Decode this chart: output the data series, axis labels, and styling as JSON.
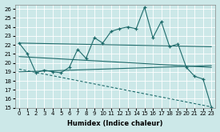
{
  "xlabel": "Humidex (Indice chaleur)",
  "background_color": "#cce8e8",
  "grid_color": "#ffffff",
  "line_color": "#1e6b6b",
  "xlim": [
    -0.5,
    23.5
  ],
  "ylim": [
    15,
    26.5
  ],
  "yticks": [
    15,
    16,
    17,
    18,
    19,
    20,
    21,
    22,
    23,
    24,
    25,
    26
  ],
  "xticks": [
    0,
    1,
    2,
    3,
    4,
    5,
    6,
    7,
    8,
    9,
    10,
    11,
    12,
    13,
    14,
    15,
    16,
    17,
    18,
    19,
    20,
    21,
    22,
    23
  ],
  "main_x": [
    0,
    1,
    2,
    3,
    4,
    5,
    6,
    7,
    8,
    9,
    10,
    11,
    12,
    13,
    14,
    15,
    16,
    17,
    18,
    19,
    20,
    21,
    22,
    23
  ],
  "main_y": [
    22.2,
    21.0,
    18.9,
    19.2,
    19.0,
    18.9,
    19.5,
    21.5,
    20.5,
    22.8,
    22.2,
    23.5,
    23.8,
    24.0,
    23.8,
    26.2,
    22.8,
    24.6,
    21.8,
    22.1,
    19.5,
    18.5,
    18.2,
    15.1
  ],
  "trend1_x": [
    0,
    23
  ],
  "trend1_y": [
    22.2,
    21.8
  ],
  "trend2_x": [
    0,
    23
  ],
  "trend2_y": [
    19.0,
    19.7
  ],
  "trend3_x": [
    0,
    23
  ],
  "trend3_y": [
    19.3,
    15.1
  ],
  "trend4_x": [
    0,
    23
  ],
  "trend4_y": [
    20.7,
    19.5
  ],
  "fontsize_tick": 5,
  "fontsize_xlabel": 6
}
